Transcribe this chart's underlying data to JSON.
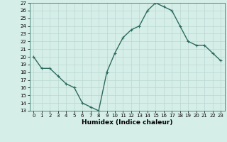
{
  "x": [
    0,
    1,
    2,
    3,
    4,
    5,
    6,
    7,
    8,
    9,
    10,
    11,
    12,
    13,
    14,
    15,
    16,
    17,
    18,
    19,
    20,
    21,
    22,
    23
  ],
  "y": [
    20,
    18.5,
    18.5,
    17.5,
    16.5,
    16,
    14,
    13.5,
    13,
    18,
    20.5,
    22.5,
    23.5,
    24,
    26,
    27,
    26.5,
    26,
    24,
    22,
    21.5,
    21.5,
    20.5,
    19.5
  ],
  "line_color": "#2e6b5e",
  "marker": "+",
  "markersize": 3,
  "linewidth": 1.0,
  "xlabel": "Humidex (Indice chaleur)",
  "xlim": [
    -0.5,
    23.5
  ],
  "ylim": [
    13,
    27
  ],
  "yticks": [
    13,
    14,
    15,
    16,
    17,
    18,
    19,
    20,
    21,
    22,
    23,
    24,
    25,
    26,
    27
  ],
  "xticks": [
    0,
    1,
    2,
    3,
    4,
    5,
    6,
    7,
    8,
    9,
    10,
    11,
    12,
    13,
    14,
    15,
    16,
    17,
    18,
    19,
    20,
    21,
    22,
    23
  ],
  "bg_color": "#d6eee8",
  "grid_color": "#b8d8d0",
  "tick_fontsize": 5,
  "label_fontsize": 6.5
}
